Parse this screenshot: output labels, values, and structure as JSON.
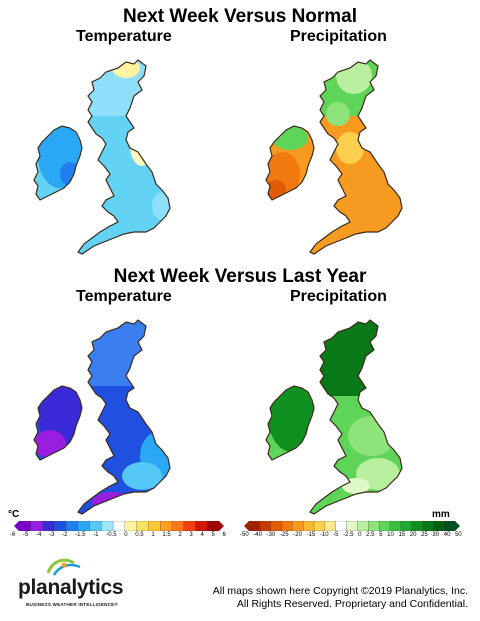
{
  "titles": {
    "top": "Next Week Versus Normal",
    "bottom": "Next Week Versus Last Year"
  },
  "panels": {
    "top_left": "Temperature",
    "top_right": "Precipitation",
    "bottom_left": "Temperature",
    "bottom_right": "Precipitation"
  },
  "legends": {
    "temperature": {
      "unit": "°C",
      "ticks": [
        "-6",
        "-5",
        "-4",
        "-3",
        "-2",
        "-1.5",
        "-1",
        "-0.5",
        "0",
        "0.5",
        "1",
        "1.5",
        "2",
        "3",
        "4",
        "5",
        "6"
      ],
      "colors": [
        "#7a00c8",
        "#9a1ee0",
        "#3a2ad8",
        "#2050e0",
        "#1f7ef0",
        "#2aa8f5",
        "#55c8f8",
        "#9ee4fa",
        "#ffffff",
        "#fff2a0",
        "#ffe060",
        "#ffc830",
        "#ffa020",
        "#ff7818",
        "#f04010",
        "#d01808",
        "#a00000"
      ]
    },
    "precipitation": {
      "unit": "mm",
      "ticks": [
        "-50",
        "-40",
        "-30",
        "-25",
        "-20",
        "-15",
        "-10",
        "-5",
        "-2.5",
        "0",
        "2.5",
        "5",
        "10",
        "15",
        "20",
        "25",
        "30",
        "40",
        "50"
      ],
      "colors": [
        "#a02000",
        "#c83a00",
        "#e05a08",
        "#f07a10",
        "#f79a20",
        "#fbb830",
        "#fdd050",
        "#fee890",
        "#ffffff",
        "#dff8c8",
        "#b8f0a0",
        "#8ee47a",
        "#5ed458",
        "#38c040",
        "#20a830",
        "#109020",
        "#087818",
        "#006010",
        "#005020"
      ]
    }
  },
  "copyright": {
    "line1": "All maps shown here Copyright ©2019 Planalytics, Inc.",
    "line2": "All Rights Reserved. Proprietary and Confidential."
  },
  "logo": {
    "name": "planalytics",
    "tagline": "BUSINESS WEATHER INTELLIGENCE®"
  }
}
